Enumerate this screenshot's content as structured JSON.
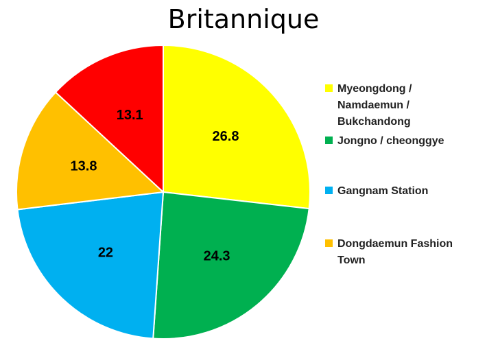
{
  "chart_data": {
    "type": "pie",
    "title": "Britannique",
    "slices": [
      {
        "label": "Myeongdong / Namdaemun / Bukchandong",
        "value": 26.8,
        "color": "#ffff00"
      },
      {
        "label": "Jongno / cheonggye",
        "value": 24.3,
        "color": "#00b050"
      },
      {
        "label": "Gangnam Station",
        "value": 22,
        "color": "#00b0f0"
      },
      {
        "label": "Dongdaemun Fashion Town",
        "value": 13.8,
        "color": "#ffc000"
      },
      {
        "label": "",
        "value": 13.1,
        "color": "#ff0000"
      }
    ],
    "data_labels": [
      "26.8",
      "24.3",
      "22",
      "13.8",
      "13.1"
    ],
    "legend": [
      {
        "label": "Myeongdong / Namdaemun / Bukchandong",
        "color": "#ffff00"
      },
      {
        "label": "Jongno / cheonggye",
        "color": "#00b050"
      },
      {
        "label": "Gangnam Station",
        "color": "#00b0f0"
      },
      {
        "label": "Dongdaemun Fashion Town",
        "color": "#ffc000"
      }
    ],
    "legend_position": "right",
    "start_angle": "top",
    "direction": "clockwise"
  }
}
